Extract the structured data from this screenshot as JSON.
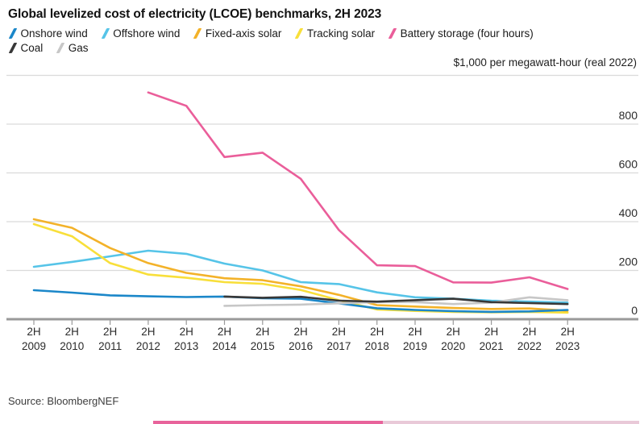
{
  "header": {
    "title": "Global levelized cost of electricity (LCOE) benchmarks, 2H 2023"
  },
  "axis_note": "$1,000 per megawatt-hour (real 2022)",
  "source": "Source: BloombergNEF",
  "colors": {
    "grid": "#dadada",
    "axis": "#9a9a9a",
    "text": "#2b2b2b",
    "strip_left": "#e8639b",
    "strip_right": "#e9c9d8"
  },
  "chart_data": {
    "type": "line",
    "categories": [
      "2H 2009",
      "2H 2010",
      "2H 2011",
      "2H 2012",
      "2H 2013",
      "2H 2014",
      "2H 2015",
      "2H 2016",
      "2H 2017",
      "2H 2018",
      "2H 2019",
      "2H 2020",
      "2H 2021",
      "2H 2022",
      "2H 2023"
    ],
    "series": [
      {
        "name": "Onshore wind",
        "color": "#1b87c9",
        "legend_row": 1,
        "values": [
          119,
          109,
          98,
          94,
          91,
          93,
          86,
          84,
          65,
          45,
          38,
          33,
          30,
          32,
          38
        ]
      },
      {
        "name": "Offshore wind",
        "color": "#56c4e8",
        "legend_row": 1,
        "values": [
          215,
          235,
          258,
          281,
          268,
          228,
          200,
          152,
          144,
          110,
          90,
          84,
          76,
          72,
          68
        ]
      },
      {
        "name": "Fixed-axis solar",
        "color": "#f3b229",
        "legend_row": 1,
        "values": [
          410,
          375,
          292,
          230,
          190,
          168,
          160,
          135,
          100,
          58,
          52,
          46,
          42,
          44,
          35
        ]
      },
      {
        "name": "Tracking solar",
        "color": "#f8df3a",
        "legend_row": 1,
        "values": [
          390,
          340,
          230,
          183,
          170,
          152,
          145,
          120,
          78,
          40,
          34,
          30,
          28,
          30,
          27
        ]
      },
      {
        "name": "Battery storage (four hours)",
        "color": "#ea5e9a",
        "legend_row": 1,
        "values": [
          null,
          null,
          null,
          930,
          875,
          665,
          683,
          576,
          366,
          221,
          218,
          151,
          150,
          172,
          124
        ]
      },
      {
        "name": "Coal",
        "color": "#383838",
        "legend_row": 2,
        "values": [
          null,
          null,
          null,
          null,
          null,
          93,
          88,
          92,
          76,
          72,
          78,
          84,
          70,
          66,
          62
        ]
      },
      {
        "name": "Gas",
        "color": "#c7c7c7",
        "legend_row": 2,
        "values": [
          null,
          null,
          null,
          null,
          null,
          55,
          58,
          60,
          65,
          70,
          70,
          62,
          68,
          90,
          78
        ]
      }
    ],
    "ylim": [
      0,
      1000
    ],
    "yticks": [
      0,
      200,
      400,
      600,
      800
    ],
    "top_gridline_value": 1000,
    "ylabel": "$1,000 per megawatt-hour (real 2022)",
    "xlabel": "",
    "grid": true,
    "legend_position": "top",
    "draw_order": [
      1,
      3,
      2,
      0,
      6,
      5,
      4
    ]
  }
}
